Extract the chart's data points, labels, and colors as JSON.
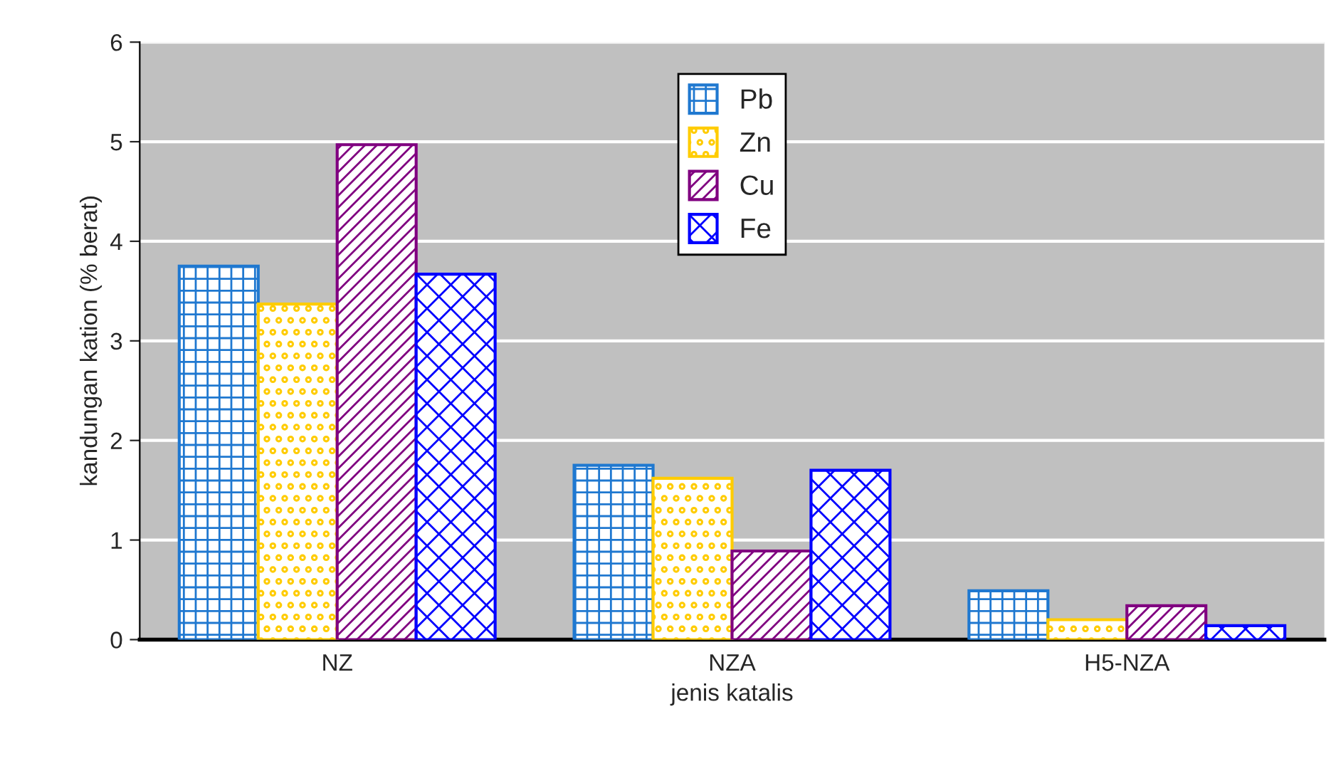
{
  "chart_data": {
    "type": "bar",
    "xlabel": "jenis katalis",
    "ylabel": "kandungan kation (% berat)",
    "categories": [
      "NZ",
      "NZA",
      "H5-NZA"
    ],
    "series": [
      {
        "name": "Pb",
        "color": "#1f78d0",
        "values": [
          3.75,
          1.75,
          0.49
        ]
      },
      {
        "name": "Zn",
        "color": "#ffcc00",
        "values": [
          3.37,
          1.62,
          0.2
        ]
      },
      {
        "name": "Cu",
        "color": "#800080",
        "values": [
          4.97,
          0.89,
          0.34
        ]
      },
      {
        "name": "Fe",
        "color": "#0000ff",
        "values": [
          3.67,
          1.7,
          0.14
        ]
      }
    ],
    "ylim": [
      0,
      6
    ],
    "yticks": [
      0,
      1,
      2,
      3,
      4,
      5,
      6
    ],
    "grid": "y",
    "legend": "top"
  }
}
